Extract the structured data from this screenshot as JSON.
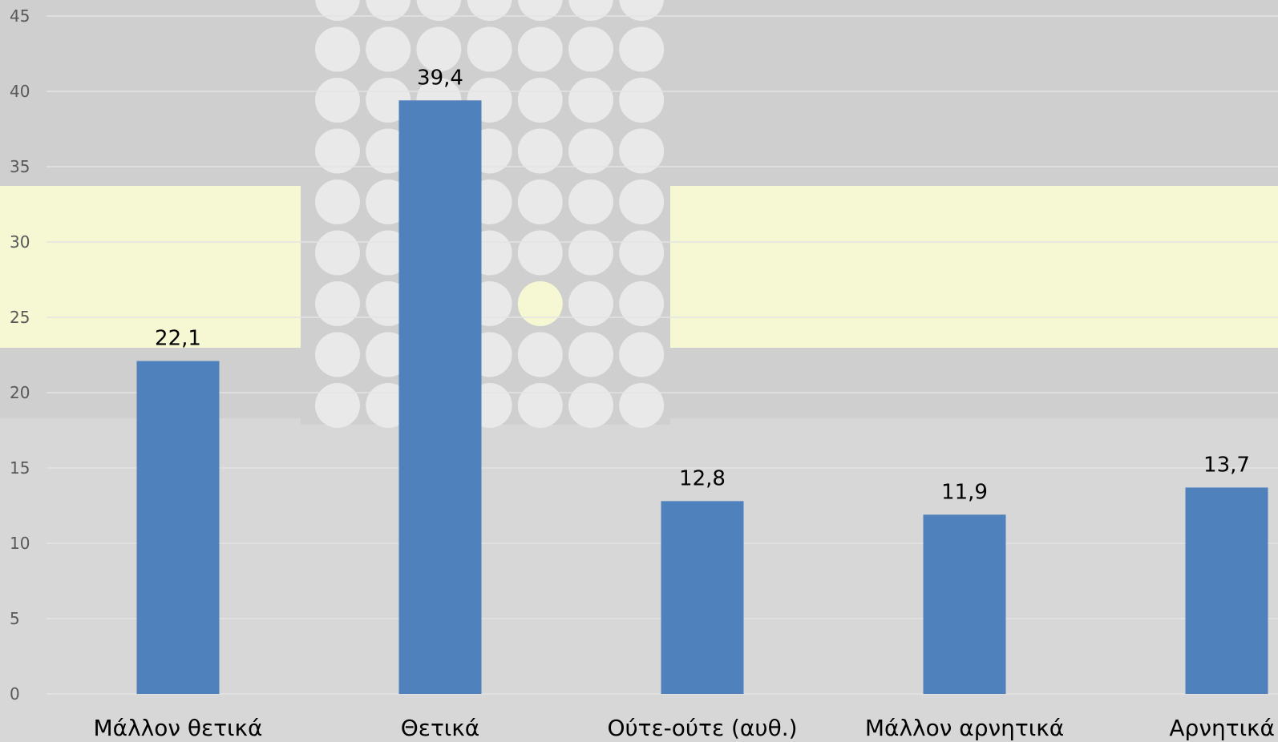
{
  "chart_data": {
    "type": "bar",
    "title": "",
    "xlabel": "",
    "ylabel": "",
    "categories": [
      "Μάλλον θετικά",
      "Θετικά",
      "Ούτε-ούτε (αυθ.)",
      "Μάλλον αρνητικά",
      "Αρνητικά"
    ],
    "values": [
      22.1,
      39.4,
      12.8,
      11.9,
      13.7
    ],
    "data_labels": [
      "22,1",
      "39,4",
      "12,8",
      "11,9",
      "13,7"
    ],
    "ylim": [
      0,
      45
    ],
    "yticks": [
      "0",
      "5",
      "10",
      "15",
      "20",
      "25",
      "30",
      "35",
      "40",
      "45"
    ],
    "grid": true,
    "legend": "none",
    "colors": {
      "bar": "#4f81bd",
      "background": "#d7d7d7",
      "highlight_band": "#f5f8d2",
      "dot_panel": "#cfcfcf",
      "dot": "#e9e9e9"
    }
  }
}
